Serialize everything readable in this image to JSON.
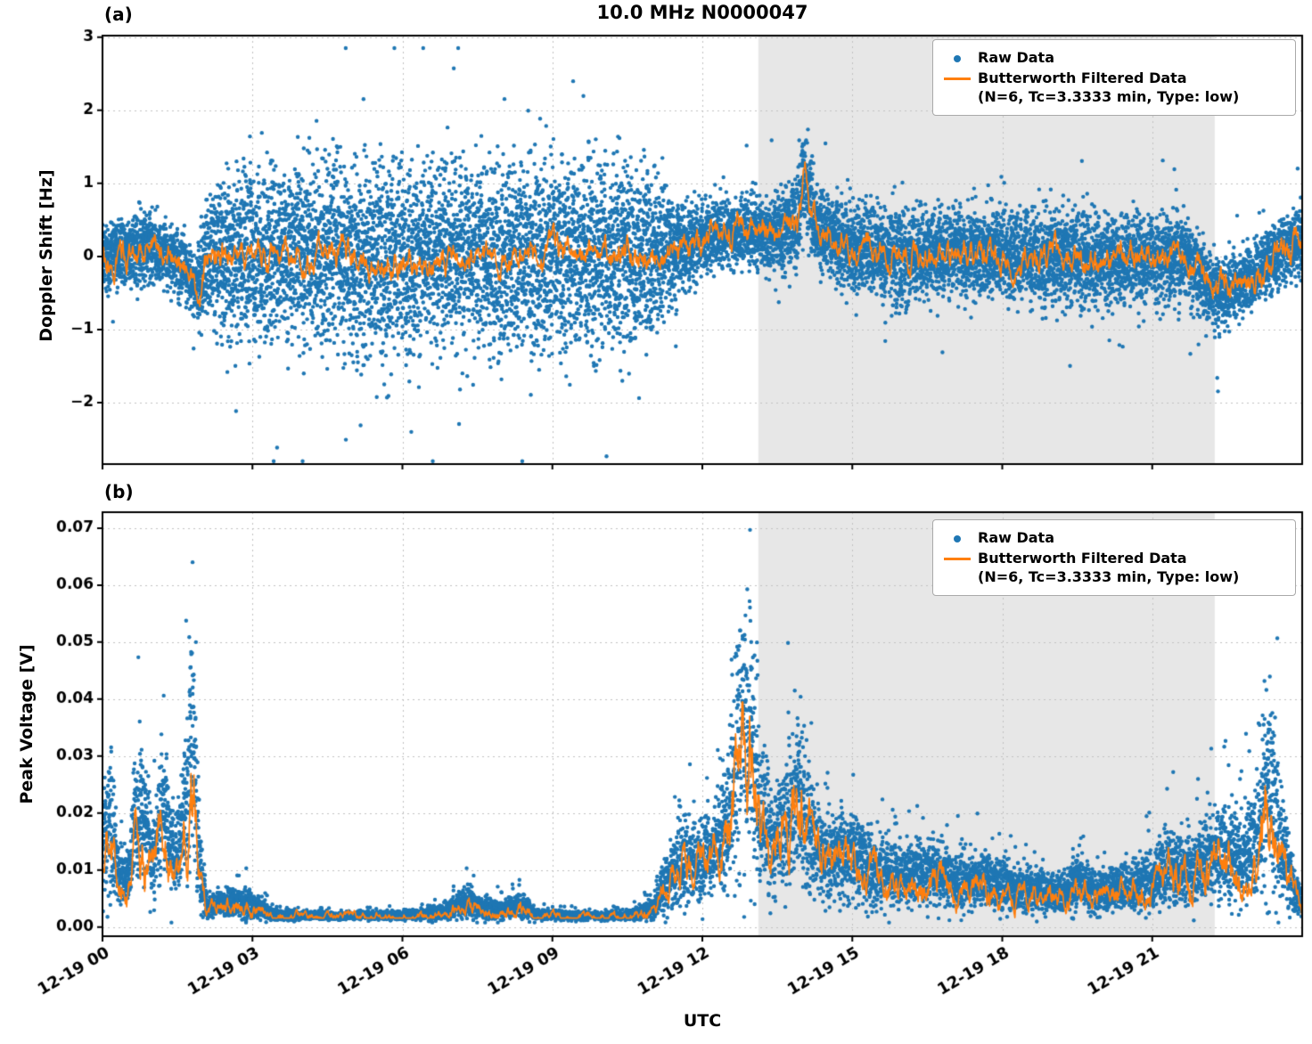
{
  "title": "10.0 MHz N0000047",
  "subplot_a_label": "(a)",
  "subplot_b_label": "(b)",
  "xlabel": "UTC",
  "legend": {
    "raw_label": "Raw Data",
    "filtered_label": "Butterworth Filtered Data",
    "filtered_sub": "(N=6, Tc=3.3333 min, Type: low)"
  },
  "colors": {
    "raw": "#1f77b4",
    "filtered": "#ff7f0e",
    "shade": "#e7e7e7",
    "grid": "#c2c2c2",
    "axis": "#000000"
  },
  "chart_data": [
    {
      "type": "scatter",
      "series": [
        {
          "name": "Raw Data",
          "type": "scatter",
          "color": "#1f77b4"
        },
        {
          "name": "Butterworth Filtered Data (N=6, Tc=3.3333 min, Type: low)",
          "type": "line",
          "color": "#ff7f0e"
        }
      ],
      "ylabel": "Doppler Shift [Hz]",
      "ylim": [
        -2.84,
        3.02
      ],
      "yticks": [
        3,
        2,
        1,
        0,
        -1,
        -2
      ],
      "ytick_labels": [
        "3",
        "2",
        "1",
        "0",
        "−1",
        "−2"
      ],
      "xlim_hours": [
        0,
        24
      ],
      "xtick_hours": [
        0,
        3,
        6,
        9,
        12,
        15,
        18,
        21
      ],
      "xtick_labels": [
        "12-19 00",
        "12-19 03",
        "12-19 06",
        "12-19 09",
        "12-19 12",
        "12-19 15",
        "12-19 18",
        "12-19 21"
      ],
      "shade_hours": [
        13.12,
        22.25
      ],
      "grid": true,
      "legend_position": "upper right",
      "raw_envelope": [
        [
          0.0,
          0.0,
          0.55
        ],
        [
          0.5,
          0.05,
          0.5
        ],
        [
          0.9,
          0.15,
          0.6
        ],
        [
          1.3,
          0.0,
          0.5
        ],
        [
          1.6,
          -0.1,
          0.5
        ],
        [
          1.85,
          -0.45,
          0.45
        ],
        [
          2.05,
          -0.1,
          0.9
        ],
        [
          2.3,
          0.0,
          1.2
        ],
        [
          3.0,
          0.0,
          1.4
        ],
        [
          4.0,
          0.05,
          1.5
        ],
        [
          5.0,
          0.0,
          1.55
        ],
        [
          6.0,
          -0.05,
          1.5
        ],
        [
          7.0,
          0.0,
          1.45
        ],
        [
          8.0,
          0.0,
          1.5
        ],
        [
          9.0,
          0.05,
          1.45
        ],
        [
          10.0,
          0.0,
          1.5
        ],
        [
          10.9,
          0.0,
          1.4
        ],
        [
          11.3,
          0.1,
          0.9
        ],
        [
          11.7,
          0.15,
          0.65
        ],
        [
          12.2,
          0.3,
          0.5
        ],
        [
          12.8,
          0.35,
          0.55
        ],
        [
          13.3,
          0.3,
          0.6
        ],
        [
          13.9,
          0.4,
          0.7
        ],
        [
          14.0,
          0.9,
          0.8
        ],
        [
          14.05,
          1.15,
          0.85
        ],
        [
          14.15,
          0.75,
          0.8
        ],
        [
          14.3,
          0.35,
          0.65
        ],
        [
          15.0,
          0.1,
          0.7
        ],
        [
          16.0,
          0.0,
          0.75
        ],
        [
          17.0,
          0.05,
          0.7
        ],
        [
          18.0,
          0.0,
          0.7
        ],
        [
          19.0,
          0.0,
          0.75
        ],
        [
          20.0,
          -0.05,
          0.7
        ],
        [
          21.0,
          0.0,
          0.7
        ],
        [
          21.8,
          -0.1,
          0.7
        ],
        [
          22.3,
          -0.55,
          0.6
        ],
        [
          22.8,
          -0.35,
          0.55
        ],
        [
          23.3,
          -0.1,
          0.5
        ],
        [
          23.8,
          0.15,
          0.55
        ],
        [
          24.0,
          0.2,
          0.5
        ]
      ],
      "points_per_bin": 5,
      "outlier_rate": 0.0045,
      "one_sided": false,
      "clamp": [
        -2.8,
        2.85
      ],
      "line_gain": 1.0,
      "line_wiggle_abs": 0.2,
      "line_wiggle_rel": 0.0,
      "line_min": null
    },
    {
      "type": "scatter",
      "series": [
        {
          "name": "Raw Data",
          "type": "scatter",
          "color": "#1f77b4"
        },
        {
          "name": "Butterworth Filtered Data (N=6, Tc=3.3333 min, Type: low)",
          "type": "line",
          "color": "#ff7f0e"
        }
      ],
      "ylabel": "Peak Voltage [V]",
      "ylim": [
        -0.0016,
        0.0728
      ],
      "yticks": [
        0.07,
        0.06,
        0.05,
        0.04,
        0.03,
        0.02,
        0.01,
        0.0
      ],
      "ytick_labels": [
        "0.07",
        "0.06",
        "0.05",
        "0.04",
        "0.03",
        "0.02",
        "0.01",
        "0.00"
      ],
      "xlim_hours": [
        0,
        24
      ],
      "xtick_hours": [
        0,
        3,
        6,
        9,
        12,
        15,
        18,
        21
      ],
      "xtick_labels": [
        "12-19 00",
        "12-19 03",
        "12-19 06",
        "12-19 09",
        "12-19 12",
        "12-19 15",
        "12-19 18",
        "12-19 21"
      ],
      "shade_hours": [
        13.12,
        22.25
      ],
      "grid": true,
      "legend_position": "upper right",
      "raw_envelope": [
        [
          0.0,
          0.012,
          0.01
        ],
        [
          0.15,
          0.02,
          0.018
        ],
        [
          0.3,
          0.01,
          0.007
        ],
        [
          0.5,
          0.008,
          0.005
        ],
        [
          0.65,
          0.018,
          0.013
        ],
        [
          0.8,
          0.02,
          0.014
        ],
        [
          1.0,
          0.012,
          0.009
        ],
        [
          1.2,
          0.021,
          0.013
        ],
        [
          1.45,
          0.011,
          0.007
        ],
        [
          1.6,
          0.018,
          0.011
        ],
        [
          1.8,
          0.034,
          0.026
        ],
        [
          1.95,
          0.01,
          0.008
        ],
        [
          2.1,
          0.0035,
          0.002
        ],
        [
          2.5,
          0.0045,
          0.003
        ],
        [
          3.0,
          0.004,
          0.0028
        ],
        [
          3.4,
          0.0022,
          0.0012
        ],
        [
          4.0,
          0.002,
          0.0008
        ],
        [
          5.0,
          0.002,
          0.0008
        ],
        [
          6.0,
          0.0021,
          0.0009
        ],
        [
          6.8,
          0.0025,
          0.0015
        ],
        [
          7.3,
          0.0045,
          0.003
        ],
        [
          7.6,
          0.0035,
          0.0022
        ],
        [
          8.0,
          0.0028,
          0.0018
        ],
        [
          8.35,
          0.004,
          0.0025
        ],
        [
          8.7,
          0.0022,
          0.001
        ],
        [
          9.5,
          0.002,
          0.0008
        ],
        [
          10.5,
          0.002,
          0.0008
        ],
        [
          11.0,
          0.003,
          0.002
        ],
        [
          11.35,
          0.009,
          0.007
        ],
        [
          11.6,
          0.012,
          0.009
        ],
        [
          11.9,
          0.0115,
          0.008
        ],
        [
          12.2,
          0.013,
          0.0095
        ],
        [
          12.5,
          0.018,
          0.014
        ],
        [
          12.75,
          0.033,
          0.026
        ],
        [
          12.95,
          0.034,
          0.027
        ],
        [
          13.15,
          0.02,
          0.015
        ],
        [
          13.4,
          0.015,
          0.011
        ],
        [
          13.7,
          0.019,
          0.014
        ],
        [
          13.95,
          0.024,
          0.017
        ],
        [
          14.2,
          0.015,
          0.01
        ],
        [
          14.6,
          0.012,
          0.008
        ],
        [
          15.0,
          0.013,
          0.009
        ],
        [
          15.4,
          0.01,
          0.007
        ],
        [
          16.0,
          0.009,
          0.0062
        ],
        [
          16.5,
          0.01,
          0.0068
        ],
        [
          17.0,
          0.0082,
          0.0055
        ],
        [
          17.5,
          0.0088,
          0.0058
        ],
        [
          18.0,
          0.0072,
          0.0048
        ],
        [
          18.6,
          0.0068,
          0.0044
        ],
        [
          19.2,
          0.0062,
          0.004
        ],
        [
          19.55,
          0.0085,
          0.006
        ],
        [
          19.9,
          0.006,
          0.004
        ],
        [
          20.5,
          0.0068,
          0.0046
        ],
        [
          21.0,
          0.008,
          0.0058
        ],
        [
          21.35,
          0.0115,
          0.008
        ],
        [
          21.7,
          0.01,
          0.0068
        ],
        [
          22.1,
          0.012,
          0.0085
        ],
        [
          22.45,
          0.0135,
          0.0095
        ],
        [
          22.8,
          0.012,
          0.0085
        ],
        [
          23.1,
          0.016,
          0.013
        ],
        [
          23.35,
          0.026,
          0.021
        ],
        [
          23.6,
          0.015,
          0.012
        ],
        [
          23.85,
          0.006,
          0.004
        ],
        [
          24.0,
          0.005,
          0.0035
        ]
      ],
      "points_per_bin": 4,
      "outlier_rate": 0.012,
      "one_sided": true,
      "clamp": [
        0.0008,
        0.0697
      ],
      "line_gain": 0.85,
      "line_wiggle_abs": 0.0002,
      "line_wiggle_rel": 0.3,
      "line_min": 0.0016
    }
  ]
}
